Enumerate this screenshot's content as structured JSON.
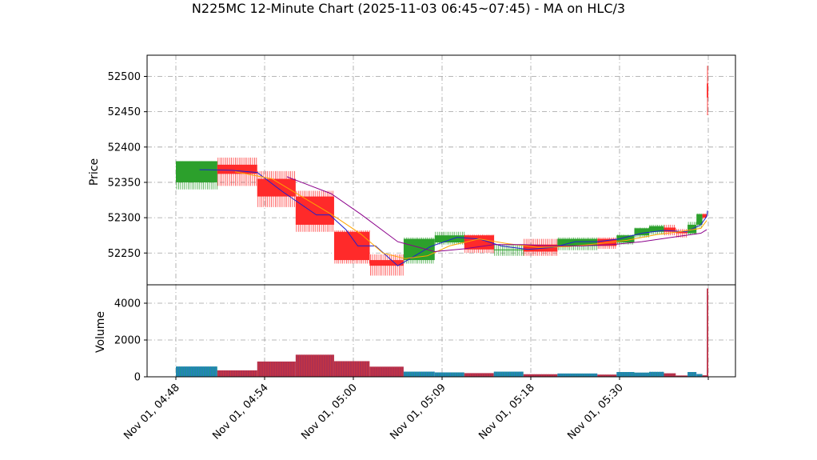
{
  "chart_data": {
    "type": "candlestick",
    "title": "N225MC 12-Minute Chart (2025-11-03 06:45~07:45) - MA on HLC/3",
    "price_panel": {
      "ylabel": "Price",
      "ylim": [
        52205,
        52530
      ],
      "yticks": [
        52250,
        52300,
        52350,
        52400,
        52450,
        52500
      ],
      "grid": true
    },
    "volume_panel": {
      "ylabel": "Volume",
      "ylim": [
        0,
        5000
      ],
      "yticks": [
        0,
        2000,
        4000
      ],
      "grid": true
    },
    "xaxis": {
      "ticks": [
        {
          "t": 0,
          "label": "Nov 01, 04:48"
        },
        {
          "t": 6,
          "label": "Nov 01, 04:54"
        },
        {
          "t": 12,
          "label": "Nov 01, 05:00"
        },
        {
          "t": 18,
          "label": "Nov 01, 05:09"
        },
        {
          "t": 24,
          "label": "Nov 01, 05:18"
        },
        {
          "t": 30,
          "label": "Nov 01, 05:30"
        },
        {
          "t": 36,
          "label": ""
        }
      ]
    },
    "colors": {
      "up": "#2ca02c",
      "down": "#ff2a2a",
      "vol_up": "#1f8ea0",
      "vol_down": "#b03050",
      "ma_fast": "#1f1fcf",
      "ma_mid": "#ffa500",
      "ma_slow": "#8b008b"
    },
    "candles": [
      {
        "t0": 0,
        "t1": 2.8,
        "open": 52350,
        "close": 52380,
        "high": 52380,
        "low": 52340,
        "volume": 560
      },
      {
        "t0": 2.8,
        "t1": 5.5,
        "open": 52375,
        "close": 52362,
        "high": 52385,
        "low": 52345,
        "volume": 350
      },
      {
        "t0": 5.5,
        "t1": 8.1,
        "open": 52355,
        "close": 52330,
        "high": 52366,
        "low": 52315,
        "volume": 830
      },
      {
        "t0": 8.1,
        "t1": 10.7,
        "open": 52330,
        "close": 52290,
        "high": 52338,
        "low": 52280,
        "volume": 1200
      },
      {
        "t0": 10.7,
        "t1": 13.1,
        "open": 52280,
        "close": 52240,
        "high": 52282,
        "low": 52235,
        "volume": 850
      },
      {
        "t0": 13.1,
        "t1": 15.4,
        "open": 52240,
        "close": 52232,
        "high": 52248,
        "low": 52218,
        "volume": 550
      },
      {
        "t0": 15.4,
        "t1": 17.5,
        "open": 52240,
        "close": 52270,
        "high": 52272,
        "low": 52235,
        "volume": 280
      },
      {
        "t0": 17.5,
        "t1": 19.5,
        "open": 52265,
        "close": 52275,
        "high": 52280,
        "low": 52262,
        "volume": 240
      },
      {
        "t0": 19.5,
        "t1": 21.5,
        "open": 52275,
        "close": 52255,
        "high": 52276,
        "low": 52250,
        "volume": 200
      },
      {
        "t0": 21.5,
        "t1": 23.5,
        "open": 52255,
        "close": 52255,
        "high": 52262,
        "low": 52246,
        "volume": 280
      },
      {
        "t0": 23.5,
        "t1": 25.8,
        "open": 52262,
        "close": 52252,
        "high": 52270,
        "low": 52246,
        "volume": 140
      },
      {
        "t0": 25.8,
        "t1": 28.5,
        "open": 52260,
        "close": 52270,
        "high": 52272,
        "low": 52254,
        "volume": 180
      },
      {
        "t0": 28.5,
        "t1": 29.8,
        "open": 52270,
        "close": 52260,
        "high": 52272,
        "low": 52256,
        "volume": 120
      },
      {
        "t0": 29.8,
        "t1": 31.0,
        "open": 52265,
        "close": 52275,
        "high": 52276,
        "low": 52262,
        "volume": 260
      },
      {
        "t0": 31.0,
        "t1": 32.0,
        "open": 52275,
        "close": 52285,
        "high": 52286,
        "low": 52272,
        "volume": 230
      },
      {
        "t0": 32.0,
        "t1": 33.0,
        "open": 52280,
        "close": 52288,
        "high": 52290,
        "low": 52276,
        "volume": 270
      },
      {
        "t0": 33.0,
        "t1": 33.8,
        "open": 52286,
        "close": 52280,
        "high": 52290,
        "low": 52275,
        "volume": 190
      },
      {
        "t0": 33.8,
        "t1": 34.6,
        "open": 52280,
        "close": 52278,
        "high": 52284,
        "low": 52272,
        "volume": 70
      },
      {
        "t0": 34.6,
        "t1": 35.2,
        "open": 52278,
        "close": 52290,
        "high": 52294,
        "low": 52276,
        "volume": 260
      },
      {
        "t0": 35.2,
        "t1": 35.6,
        "open": 52290,
        "close": 52305,
        "high": 52306,
        "low": 52286,
        "volume": 150
      },
      {
        "t0": 35.6,
        "t1": 35.9,
        "open": 52305,
        "close": 52300,
        "high": 52306,
        "low": 52298,
        "volume": 80
      },
      {
        "t0": 35.9,
        "t1": 36.0,
        "open": 52490,
        "close": 52470,
        "high": 52515,
        "low": 52445,
        "volume": 4800
      }
    ],
    "ma_series": [
      {
        "key": "ma_fast",
        "points": [
          [
            1.6,
            52368
          ],
          [
            3.8,
            52367
          ],
          [
            5.5,
            52364
          ],
          [
            7.2,
            52337
          ],
          [
            9.5,
            52304
          ],
          [
            10.4,
            52304
          ],
          [
            11.5,
            52283
          ],
          [
            12.3,
            52260
          ],
          [
            13.5,
            52260
          ],
          [
            15.0,
            52232
          ],
          [
            16.0,
            52244
          ],
          [
            17.2,
            52259
          ],
          [
            19.0,
            52272
          ],
          [
            20.5,
            52270
          ],
          [
            22.0,
            52260
          ],
          [
            23.8,
            52255
          ],
          [
            25.5,
            52258
          ],
          [
            27.0,
            52266
          ],
          [
            28.5,
            52266
          ],
          [
            30.0,
            52270
          ],
          [
            31.5,
            52278
          ],
          [
            33.0,
            52282
          ],
          [
            34.5,
            52280
          ],
          [
            35.5,
            52290
          ],
          [
            35.9,
            52302
          ],
          [
            35.95,
            52310
          ]
        ]
      },
      {
        "key": "ma_mid",
        "points": [
          [
            4.0,
            52365
          ],
          [
            6.5,
            52355
          ],
          [
            8.5,
            52330
          ],
          [
            10.5,
            52305
          ],
          [
            12.5,
            52277
          ],
          [
            14.0,
            52250
          ],
          [
            15.5,
            52242
          ],
          [
            17.0,
            52246
          ],
          [
            18.5,
            52260
          ],
          [
            20.5,
            52270
          ],
          [
            22.5,
            52263
          ],
          [
            24.5,
            52258
          ],
          [
            26.5,
            52259
          ],
          [
            28.5,
            52263
          ],
          [
            30.5,
            52268
          ],
          [
            32.5,
            52276
          ],
          [
            34.0,
            52280
          ],
          [
            35.5,
            52285
          ],
          [
            35.9,
            52296
          ]
        ]
      },
      {
        "key": "ma_slow",
        "points": [
          [
            7.5,
            52358
          ],
          [
            10.5,
            52334
          ],
          [
            12.5,
            52305
          ],
          [
            15.0,
            52266
          ],
          [
            17.5,
            52252
          ],
          [
            19.5,
            52256
          ],
          [
            21.5,
            52262
          ],
          [
            23.5,
            52262
          ],
          [
            25.5,
            52260
          ],
          [
            27.5,
            52260
          ],
          [
            29.5,
            52262
          ],
          [
            31.5,
            52266
          ],
          [
            33.5,
            52272
          ],
          [
            35.5,
            52278
          ],
          [
            35.9,
            52283
          ]
        ]
      }
    ]
  }
}
